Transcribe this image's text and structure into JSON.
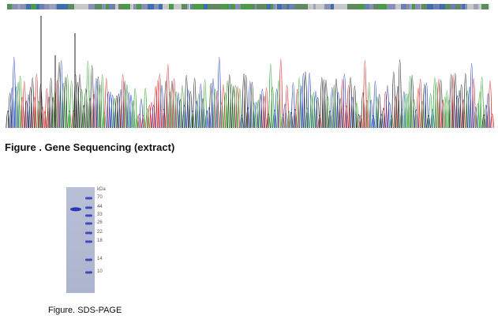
{
  "sequencing": {
    "caption": "Figure . Gene Sequencing (extract)",
    "trace_colors": {
      "A": "#2ca02c",
      "C": "#1f3fbf",
      "G": "#222222",
      "T": "#d62728"
    },
    "strip_colors": [
      "#6b7fb3",
      "#4a9a4a",
      "#c8c8c8",
      "#8a8fb8",
      "#3d6fb0",
      "#9aa3b8",
      "#5f8a5f"
    ]
  },
  "sds_page": {
    "caption": "Figure. SDS-PAGE",
    "unit_label": "kDa",
    "markers": [
      "70",
      "44",
      "33",
      "26",
      "22",
      "18",
      "14",
      "10"
    ],
    "band_color": "#2a36b8"
  }
}
